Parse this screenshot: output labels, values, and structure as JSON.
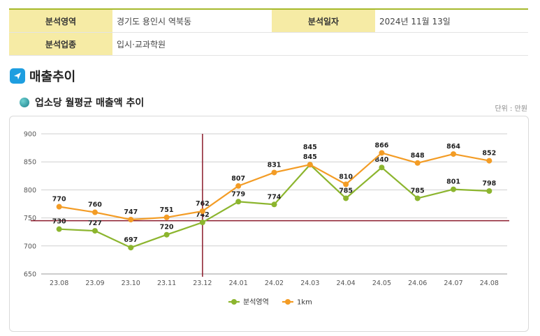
{
  "info": {
    "region_label": "분석영역",
    "region_value": "경기도 용인시 역북동",
    "date_label": "분석일자",
    "date_value": "2024년 11월 13일",
    "industry_label": "분석업종",
    "industry_value": "입시·교과학원"
  },
  "section": {
    "title": "매출추이",
    "icon": "arrow-tile-icon"
  },
  "subsection": {
    "title": "업소당 월평균 매출액 추이",
    "unit": "단위 : 만원"
  },
  "chart_data": {
    "type": "line",
    "title": "업소당 월평균 매출액 추이",
    "xlabel": "",
    "ylabel": "",
    "categories": [
      "23.08",
      "23.09",
      "23.10",
      "23.11",
      "23.12",
      "24.01",
      "24.02",
      "24.03",
      "24.04",
      "24.05",
      "24.06",
      "24.07",
      "24.08"
    ],
    "yticks": [
      650,
      700,
      750,
      800,
      850,
      900
    ],
    "ylim": [
      650,
      900
    ],
    "grid": true,
    "legend": "bottom-center",
    "series": [
      {
        "name": "분석영역",
        "color": "#8cb52e",
        "values": [
          730,
          727,
          697,
          720,
          742,
          779,
          774,
          845,
          785,
          840,
          785,
          801,
          798
        ]
      },
      {
        "name": "1km",
        "color": "#f39c25",
        "values": [
          770,
          760,
          747,
          751,
          762,
          807,
          831,
          845,
          810,
          866,
          848,
          864,
          852
        ]
      }
    ],
    "reference_lines": {
      "color": "#8b1a2b",
      "x_category": "23.12",
      "y_value": 745
    }
  }
}
